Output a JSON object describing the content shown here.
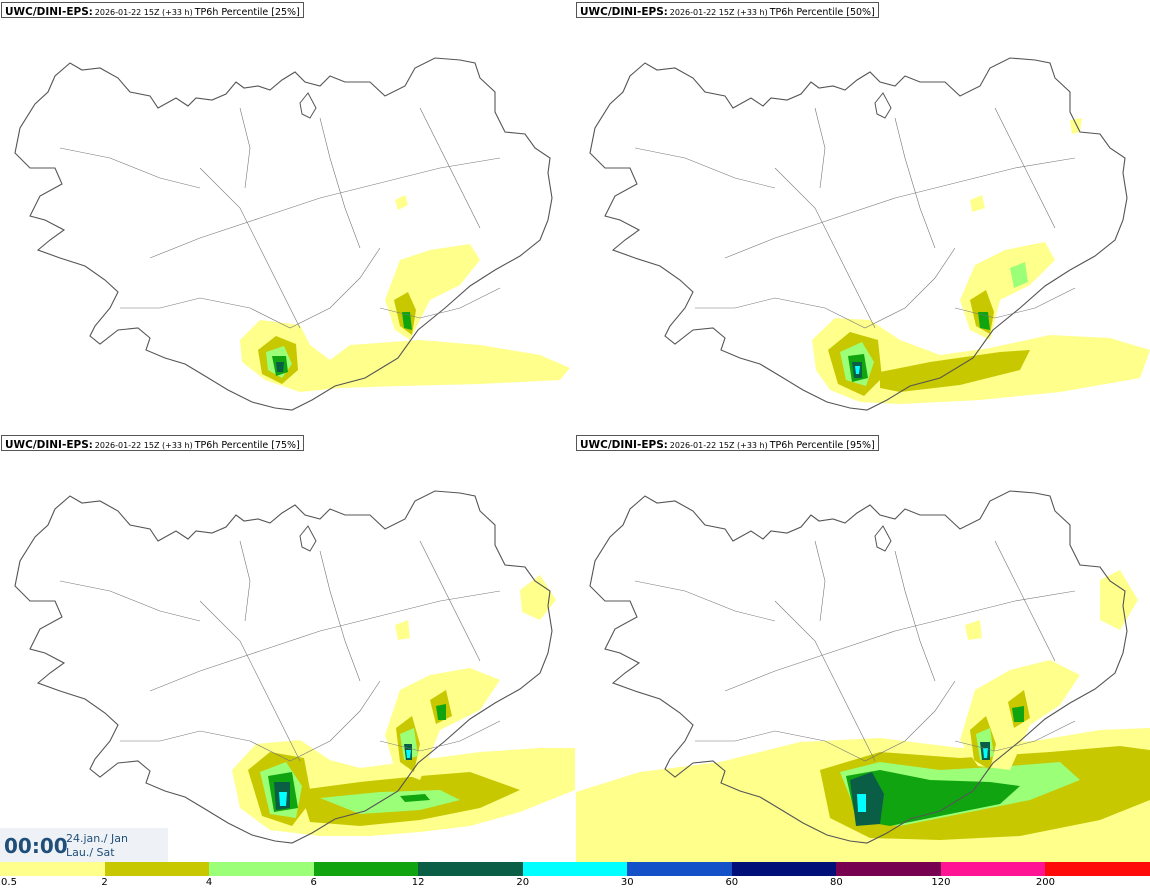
{
  "colors": {
    "c05": "#ffff8c",
    "c2": "#c8c800",
    "c4": "#9cff78",
    "c6": "#10a510",
    "c12": "#0a5e46",
    "c20": "#00ffff",
    "c30": "#1450c8",
    "c60": "#001078",
    "c80": "#780050",
    "c120": "#ff1493",
    "c200": "#ff0a0a",
    "coast": "#555555"
  },
  "panels": [
    {
      "model": "UWC/DINI-EPS",
      "run": "2026-01-22 15Z (+33 h)",
      "param": "TP6h Percentile [25%]",
      "level": 0
    },
    {
      "model": "UWC/DINI-EPS",
      "run": "2026-01-22 15Z (+33 h)",
      "param": "TP6h Percentile [50%]",
      "level": 1
    },
    {
      "model": "UWC/DINI-EPS",
      "run": "2026-01-22 15Z (+33 h)",
      "param": "TP6h Percentile [75%]",
      "level": 2
    },
    {
      "model": "UWC/DINI-EPS",
      "run": "2026-01-22 15Z (+33 h)",
      "param": "TP6h Percentile [95%]",
      "level": 3
    }
  ],
  "valid_time": {
    "time": "00:00",
    "date_line1": "24.jan./ Jan",
    "date_line2": "Lau./ Sat"
  },
  "legend": {
    "labels": [
      "0.5",
      "2",
      "4",
      "6",
      "12",
      "20",
      "30",
      "60",
      "80",
      "120",
      "200"
    ],
    "colors": [
      "#ffff8c",
      "#c8c800",
      "#9cff78",
      "#10a510",
      "#0a5e46",
      "#00ffff",
      "#1450c8",
      "#001078",
      "#780050",
      "#ff1493",
      "#ff0a0a"
    ]
  }
}
